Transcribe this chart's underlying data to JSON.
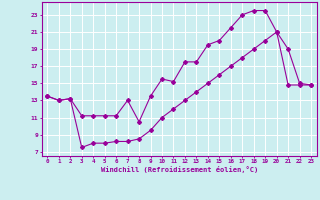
{
  "xlabel": "Windchill (Refroidissement éolien,°C)",
  "bg_color": "#cceef0",
  "line_color": "#990099",
  "grid_color": "#ffffff",
  "xlim": [
    -0.5,
    23.5
  ],
  "ylim": [
    6.5,
    24.5
  ],
  "xticks": [
    0,
    1,
    2,
    3,
    4,
    5,
    6,
    7,
    8,
    9,
    10,
    11,
    12,
    13,
    14,
    15,
    16,
    17,
    18,
    19,
    20,
    21,
    22,
    23
  ],
  "yticks": [
    7,
    9,
    11,
    13,
    15,
    17,
    19,
    21,
    23
  ],
  "curve1_x": [
    0,
    1,
    2,
    3,
    4,
    5,
    6,
    7,
    8,
    9,
    10,
    11,
    12,
    13,
    14,
    15,
    16,
    17,
    18,
    19,
    20,
    21,
    22,
    23
  ],
  "curve1_y": [
    13.5,
    13.0,
    13.2,
    11.2,
    11.2,
    11.2,
    11.2,
    13.0,
    10.5,
    13.5,
    15.5,
    15.2,
    17.5,
    17.5,
    19.5,
    20.0,
    21.5,
    23.0,
    23.5,
    23.5,
    21.0,
    19.0,
    15.0,
    14.8
  ],
  "curve2_x": [
    0,
    1,
    2,
    3,
    4,
    5,
    6,
    7,
    8,
    9,
    10,
    11,
    12,
    13,
    14,
    15,
    16,
    17,
    18,
    19,
    20,
    21,
    22,
    23
  ],
  "curve2_y": [
    13.5,
    13.0,
    13.2,
    7.5,
    8.0,
    8.0,
    8.2,
    8.2,
    8.5,
    9.5,
    11.0,
    12.0,
    13.0,
    14.0,
    15.0,
    16.0,
    17.0,
    18.0,
    19.0,
    20.0,
    21.0,
    14.8,
    14.8,
    14.8
  ]
}
